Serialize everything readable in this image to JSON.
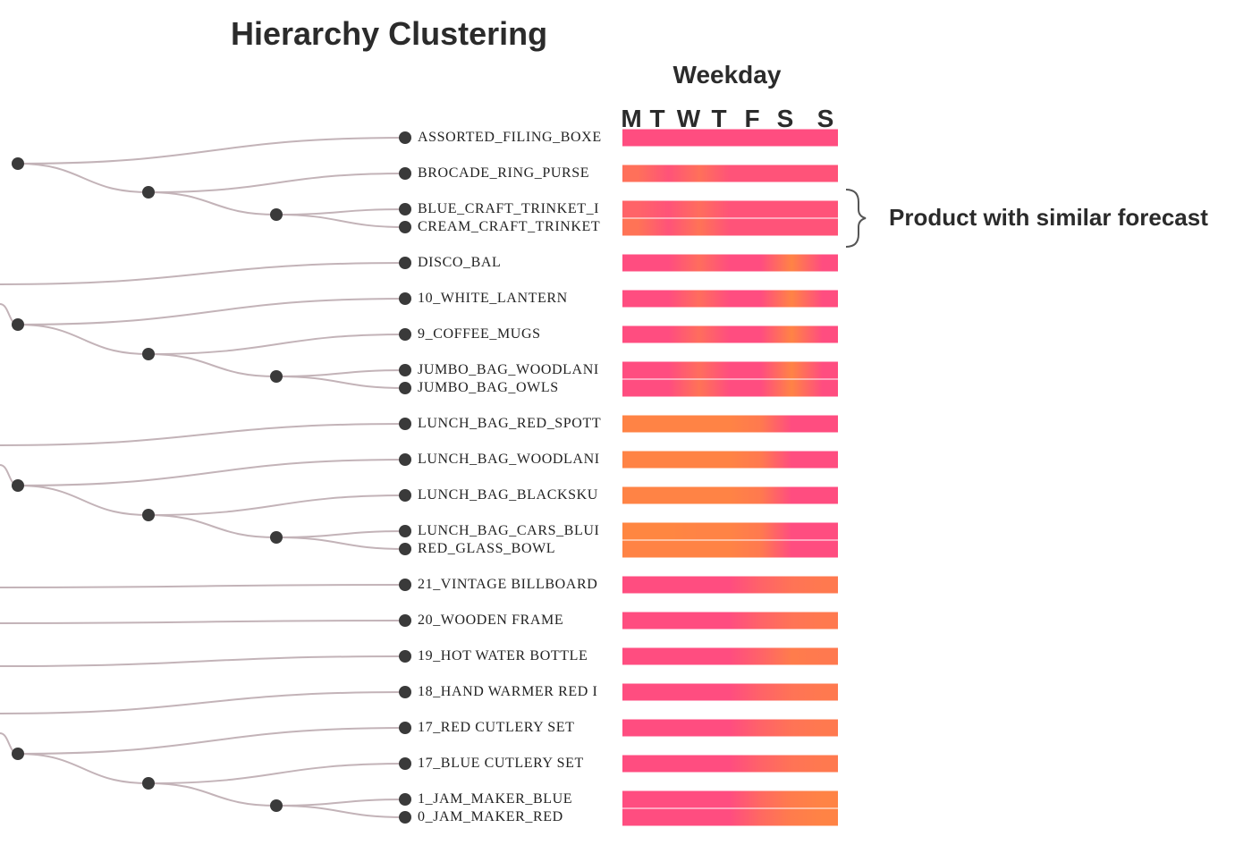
{
  "header": {
    "title": "Hierarchy Clustering",
    "axis_title": "Weekday",
    "note": "Product with similar forecast"
  },
  "colors": {
    "low": "#ff4d80",
    "high": "#ff8c3a",
    "branch": "#c3b3b8",
    "node": "#3a3a3a"
  },
  "chart_data": {
    "type": "heatmap",
    "title": "Hierarchy Clustering",
    "xlabel": "Weekday",
    "days": [
      "M",
      "T",
      "W",
      "T",
      "F",
      "S",
      "S"
    ],
    "value_scale": "0 = pink (low), 1 = orange (high), estimated from colour",
    "rows": [
      {
        "label": "ASSORTED_FILING_BOXE",
        "values": [
          0.0,
          0.0,
          0.0,
          0.0,
          0.0,
          0.0,
          0.0
        ]
      },
      {
        "label": "BROCADE_RING_PURSE",
        "values": [
          0.55,
          0.1,
          0.55,
          0.1,
          0.1,
          0.1,
          0.1
        ]
      },
      {
        "label": "BLUE_CRAFT_TRINKET_I",
        "values": [
          0.35,
          0.1,
          0.5,
          0.1,
          0.1,
          0.1,
          0.1
        ]
      },
      {
        "label": "CREAM_CRAFT_TRINKET",
        "values": [
          0.6,
          0.1,
          0.6,
          0.1,
          0.1,
          0.1,
          0.1
        ]
      },
      {
        "label": "DISCO_BAL",
        "values": [
          0.0,
          0.0,
          0.5,
          0.0,
          0.0,
          0.85,
          0.0
        ]
      },
      {
        "label": "10_WHITE_LANTERN",
        "values": [
          0.0,
          0.0,
          0.5,
          0.0,
          0.0,
          0.85,
          0.0
        ]
      },
      {
        "label": "9_COFFEE_MUGS",
        "values": [
          0.0,
          0.0,
          0.5,
          0.0,
          0.0,
          0.85,
          0.0
        ]
      },
      {
        "label": "JUMBO_BAG_WOODLANI",
        "values": [
          0.0,
          0.0,
          0.5,
          0.0,
          0.0,
          0.85,
          0.0
        ]
      },
      {
        "label": "JUMBO_BAG_OWLS",
        "values": [
          0.0,
          0.0,
          0.6,
          0.0,
          0.0,
          0.85,
          0.0
        ]
      },
      {
        "label": "LUNCH_BAG_RED_SPOTT",
        "values": [
          0.85,
          0.85,
          0.85,
          0.85,
          0.7,
          0.0,
          0.0
        ]
      },
      {
        "label": "LUNCH_BAG_WOODLANI",
        "values": [
          0.85,
          0.85,
          0.85,
          0.85,
          0.7,
          0.0,
          0.0
        ]
      },
      {
        "label": "LUNCH_BAG_BLACKSKU",
        "values": [
          0.85,
          0.85,
          0.85,
          0.85,
          0.7,
          0.0,
          0.0
        ]
      },
      {
        "label": "LUNCH_BAG_CARS_BLUI",
        "values": [
          0.9,
          0.9,
          0.85,
          0.85,
          0.7,
          0.0,
          0.0
        ]
      },
      {
        "label": "RED_GLASS_BOWL",
        "values": [
          0.85,
          0.85,
          0.85,
          0.85,
          0.7,
          0.0,
          0.0
        ]
      },
      {
        "label": "21_VINTAGE BILLBOARD",
        "values": [
          0.0,
          0.0,
          0.0,
          0.0,
          0.35,
          0.6,
          0.7
        ]
      },
      {
        "label": "20_WOODEN FRAME",
        "values": [
          0.0,
          0.0,
          0.0,
          0.0,
          0.35,
          0.6,
          0.7
        ]
      },
      {
        "label": "19_HOT WATER BOTTLE",
        "values": [
          0.0,
          0.0,
          0.0,
          0.0,
          0.35,
          0.75,
          0.7
        ]
      },
      {
        "label": "18_HAND WARMER RED I",
        "values": [
          0.0,
          0.0,
          0.0,
          0.0,
          0.35,
          0.6,
          0.7
        ]
      },
      {
        "label": "17_RED CUTLERY SET",
        "values": [
          0.0,
          0.0,
          0.0,
          0.0,
          0.35,
          0.6,
          0.7
        ]
      },
      {
        "label": "17_BLUE CUTLERY SET",
        "values": [
          0.0,
          0.0,
          0.0,
          0.0,
          0.35,
          0.6,
          0.7
        ]
      },
      {
        "label": "1_JAM_MAKER_BLUE",
        "values": [
          0.0,
          0.0,
          0.0,
          0.0,
          0.45,
          0.75,
          0.85
        ]
      },
      {
        "label": "0_JAM_MAKER_RED",
        "values": [
          0.0,
          0.0,
          0.0,
          0.0,
          0.45,
          0.75,
          0.85
        ]
      }
    ],
    "grid": false,
    "legend": "none"
  }
}
